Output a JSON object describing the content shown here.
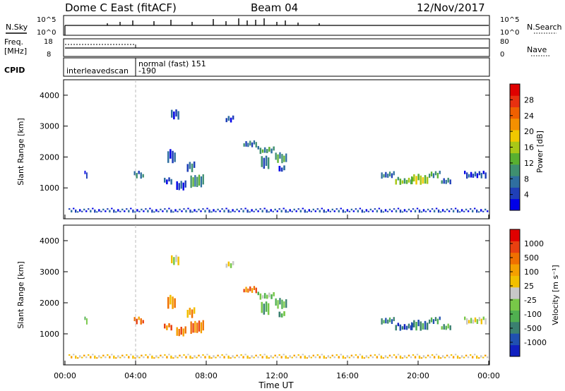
{
  "header": {
    "station": "Dome C East (fitACF)",
    "beam": "Beam 04",
    "date": "12/Nov/2017"
  },
  "panels": {
    "nsky": {
      "label": "N.Sky",
      "right_label": "N.Search",
      "ytick_top": "10^5",
      "ytick_bottom": "10^0",
      "right_tick_top": "10^5",
      "right_tick_bottom": "10^0",
      "spikes": [
        [
          0.1,
          0.3
        ],
        [
          0.13,
          0.5
        ],
        [
          0.16,
          0.7
        ],
        [
          0.21,
          0.6
        ],
        [
          0.25,
          0.8
        ],
        [
          0.3,
          0.5
        ],
        [
          0.35,
          0.9
        ],
        [
          0.38,
          0.6
        ],
        [
          0.41,
          1.0
        ],
        [
          0.43,
          0.7
        ],
        [
          0.45,
          0.8
        ],
        [
          0.47,
          1.0
        ],
        [
          0.5,
          0.5
        ],
        [
          0.52,
          0.7
        ],
        [
          0.55,
          0.4
        ],
        [
          0.6,
          0.3
        ]
      ]
    },
    "freq": {
      "label": "Freq.",
      "unit": "[MHz]",
      "right_label": "Nave",
      "ytick_top": "18",
      "ytick_bottom": "8",
      "right_tick_top": "80",
      "right_tick_bottom": "0"
    },
    "cpid": {
      "label": "CPID",
      "segments": [
        {
          "text": "interleavedscan",
          "sub": ""
        },
        {
          "text": "normal (fast)  151",
          "sub": "-190"
        }
      ]
    }
  },
  "chart_data": [
    {
      "type": "scatter",
      "name": "Power",
      "ylabel": "Slant Range [km]",
      "xlabel": "Time UT",
      "ylim": [
        0,
        4500
      ],
      "yticks": [
        "1000",
        "2000",
        "3000",
        "4000"
      ],
      "xlim": [
        0,
        24
      ],
      "xticks": [
        "00:00",
        "04:00",
        "08:00",
        "12:00",
        "16:00",
        "20:00",
        "00:00"
      ],
      "colorbar": {
        "label": "Power [dB]",
        "ticks": [
          "4",
          "8",
          "12",
          "16",
          "20",
          "24",
          "28"
        ],
        "colors": [
          "#0000e8",
          "#1f3fb8",
          "#2f6fa0",
          "#3f9070",
          "#59b030",
          "#a8c818",
          "#f0c800",
          "#f59000",
          "#f06000",
          "#e83010",
          "#e00000"
        ]
      },
      "patches": [
        {
          "t": [
            1.1,
            1.3
          ],
          "r": [
            1300,
            1500
          ],
          "c": 1
        },
        {
          "t": [
            3.9,
            4.5
          ],
          "r": [
            1300,
            1500
          ],
          "c": 2
        },
        {
          "t": [
            5.6,
            6.1
          ],
          "r": [
            1100,
            1300
          ],
          "c": 1
        },
        {
          "t": [
            6.3,
            6.9
          ],
          "r": [
            900,
            1200
          ],
          "c": 1
        },
        {
          "t": [
            7.1,
            7.9
          ],
          "r": [
            1000,
            1400
          ],
          "c": 3
        },
        {
          "t": [
            5.8,
            6.3
          ],
          "r": [
            1800,
            2200
          ],
          "c": 1
        },
        {
          "t": [
            6.9,
            7.4
          ],
          "r": [
            1500,
            1800
          ],
          "c": 2
        },
        {
          "t": [
            9.1,
            9.6
          ],
          "r": [
            3100,
            3300
          ],
          "c": 1
        },
        {
          "t": [
            10.1,
            10.9
          ],
          "r": [
            2300,
            2500
          ],
          "c": 2
        },
        {
          "t": [
            10.9,
            11.9
          ],
          "r": [
            2100,
            2300
          ],
          "c": 3
        },
        {
          "t": [
            11.9,
            12.6
          ],
          "r": [
            1800,
            2100
          ],
          "c": 3
        },
        {
          "t": [
            11.1,
            11.6
          ],
          "r": [
            1600,
            2000
          ],
          "c": 2
        },
        {
          "t": [
            12.1,
            12.5
          ],
          "r": [
            1500,
            1700
          ],
          "c": 1
        },
        {
          "t": [
            17.9,
            18.7
          ],
          "r": [
            1300,
            1500
          ],
          "c": 2
        },
        {
          "t": [
            18.7,
            19.8
          ],
          "r": [
            1100,
            1300
          ],
          "c": 4
        },
        {
          "t": [
            19.6,
            20.6
          ],
          "r": [
            1100,
            1400
          ],
          "c": 5
        },
        {
          "t": [
            20.6,
            21.3
          ],
          "r": [
            1300,
            1500
          ],
          "c": 3
        },
        {
          "t": [
            21.3,
            21.9
          ],
          "r": [
            1100,
            1300
          ],
          "c": 2
        },
        {
          "t": [
            22.6,
            23.9
          ],
          "r": [
            1300,
            1500
          ],
          "c": 1
        },
        {
          "t": [
            0.2,
            24.0
          ],
          "r": [
            200,
            300
          ],
          "c": 1
        },
        {
          "t": [
            6.0,
            6.5
          ],
          "r": [
            3200,
            3500
          ],
          "c": 1
        }
      ]
    },
    {
      "type": "scatter",
      "name": "Velocity",
      "ylabel": "Slant Range [km]",
      "xlabel": "Time UT",
      "ylim": [
        0,
        4500
      ],
      "yticks": [
        "1000",
        "2000",
        "3000",
        "4000"
      ],
      "xlim": [
        0,
        24
      ],
      "xticks": [
        "00:00",
        "04:00",
        "08:00",
        "12:00",
        "16:00",
        "20:00",
        "00:00"
      ],
      "colorbar": {
        "label": "Velocity [m s⁻¹]",
        "ticks": [
          "1000",
          "500",
          "100",
          "25",
          "-25",
          "-100",
          "-500",
          "-1000"
        ],
        "colors": [
          "#1020c0",
          "#2050b0",
          "#3a8070",
          "#50b050",
          "#78c848",
          "#c8c8c8",
          "#f2c000",
          "#f5a000",
          "#f07000",
          "#e84010",
          "#e00000"
        ]
      },
      "patches": [
        {
          "t": [
            1.1,
            1.3
          ],
          "r": [
            1300,
            1500
          ],
          "c": 4
        },
        {
          "t": [
            3.9,
            4.5
          ],
          "r": [
            1300,
            1500
          ],
          "c": 8
        },
        {
          "t": [
            5.6,
            6.1
          ],
          "r": [
            1100,
            1300
          ],
          "c": 8
        },
        {
          "t": [
            6.3,
            6.9
          ],
          "r": [
            900,
            1200
          ],
          "c": 8
        },
        {
          "t": [
            7.1,
            7.9
          ],
          "r": [
            1000,
            1400
          ],
          "c": 8
        },
        {
          "t": [
            5.8,
            6.3
          ],
          "r": [
            1800,
            2200
          ],
          "c": 7
        },
        {
          "t": [
            6.9,
            7.4
          ],
          "r": [
            1500,
            1800
          ],
          "c": 7
        },
        {
          "t": [
            9.1,
            9.6
          ],
          "r": [
            3100,
            3300
          ],
          "c": 5
        },
        {
          "t": [
            10.1,
            10.9
          ],
          "r": [
            2300,
            2500
          ],
          "c": 8
        },
        {
          "t": [
            10.9,
            11.9
          ],
          "r": [
            2100,
            2300
          ],
          "c": 4
        },
        {
          "t": [
            11.9,
            12.6
          ],
          "r": [
            1800,
            2100
          ],
          "c": 3
        },
        {
          "t": [
            11.1,
            11.6
          ],
          "r": [
            1600,
            2000
          ],
          "c": 3
        },
        {
          "t": [
            12.1,
            12.5
          ],
          "r": [
            1500,
            1700
          ],
          "c": 3
        },
        {
          "t": [
            17.9,
            18.7
          ],
          "r": [
            1300,
            1500
          ],
          "c": 2
        },
        {
          "t": [
            18.7,
            19.8
          ],
          "r": [
            1100,
            1300
          ],
          "c": 1
        },
        {
          "t": [
            19.6,
            20.6
          ],
          "r": [
            1100,
            1400
          ],
          "c": 2
        },
        {
          "t": [
            20.6,
            21.3
          ],
          "r": [
            1300,
            1500
          ],
          "c": 2
        },
        {
          "t": [
            21.3,
            21.9
          ],
          "r": [
            1100,
            1300
          ],
          "c": 3
        },
        {
          "t": [
            22.6,
            23.9
          ],
          "r": [
            1300,
            1500
          ],
          "c": 5
        },
        {
          "t": [
            0.2,
            24.0
          ],
          "r": [
            200,
            300
          ],
          "c": 6
        },
        {
          "t": [
            6.0,
            6.5
          ],
          "r": [
            3200,
            3500
          ],
          "c": 5
        }
      ]
    }
  ]
}
